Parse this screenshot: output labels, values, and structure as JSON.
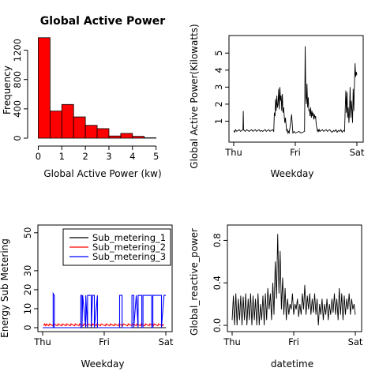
{
  "chart_data": [
    {
      "type": "bar",
      "title": "Global Active Power",
      "xlabel": "Global Active Power (kw)",
      "ylabel": "Frequency",
      "bin_edges": [
        0,
        0.5,
        1,
        1.5,
        2,
        2.5,
        3,
        3.5,
        4,
        4.5,
        5,
        5.5
      ],
      "values": [
        1370,
        370,
        460,
        290,
        175,
        130,
        30,
        65,
        25,
        5,
        0
      ],
      "bar_color": "#ff0000",
      "xticks": [
        "0",
        "1",
        "2",
        "3",
        "4",
        "5"
      ],
      "yticks": [
        "0",
        "400",
        "800",
        "1200"
      ],
      "xlim": [
        -0.25,
        5.75
      ],
      "ylim": [
        0,
        1400
      ]
    },
    {
      "type": "line",
      "title": "",
      "xlabel": "Weekday",
      "ylabel": "Global Active Power(Kilowatts)",
      "xticks": [
        "Thu",
        "Fri",
        "Sat"
      ],
      "yticks": [
        "1",
        "2",
        "3",
        "4",
        "5"
      ],
      "ylim": [
        0,
        5.8
      ],
      "x_days": [
        0,
        0.015,
        0.03,
        0.05,
        0.07,
        0.09,
        0.11,
        0.13,
        0.15,
        0.155,
        0.16,
        0.17,
        0.19,
        0.21,
        0.23,
        0.25,
        0.27,
        0.29,
        0.31,
        0.33,
        0.35,
        0.37,
        0.39,
        0.41,
        0.43,
        0.45,
        0.47,
        0.49,
        0.51,
        0.53,
        0.55,
        0.57,
        0.59,
        0.61,
        0.63,
        0.65,
        0.66,
        0.67,
        0.68,
        0.69,
        0.7,
        0.71,
        0.72,
        0.73,
        0.74,
        0.75,
        0.76,
        0.77,
        0.78,
        0.79,
        0.8,
        0.81,
        0.82,
        0.83,
        0.84,
        0.85,
        0.86,
        0.87,
        0.88,
        0.89,
        0.9,
        0.92,
        0.94,
        0.96,
        0.98,
        1.0,
        1.03,
        1.06,
        1.09,
        1.12,
        1.15,
        1.16,
        1.17,
        1.18,
        1.19,
        1.2,
        1.21,
        1.22,
        1.23,
        1.24,
        1.25,
        1.26,
        1.27,
        1.28,
        1.29,
        1.3,
        1.31,
        1.32,
        1.33,
        1.34,
        1.35,
        1.36,
        1.37,
        1.38,
        1.39,
        1.4,
        1.42,
        1.44,
        1.46,
        1.48,
        1.5,
        1.52,
        1.54,
        1.56,
        1.58,
        1.6,
        1.62,
        1.64,
        1.66,
        1.68,
        1.7,
        1.72,
        1.74,
        1.76,
        1.78,
        1.8,
        1.81,
        1.82,
        1.83,
        1.84,
        1.85,
        1.86,
        1.87,
        1.88,
        1.89,
        1.9,
        1.91,
        1.92,
        1.93,
        1.94,
        1.95,
        1.96,
        1.97,
        1.98,
        1.99,
        2.0
      ],
      "y_kw": [
        0.45,
        0.35,
        0.5,
        0.4,
        0.45,
        0.5,
        0.4,
        0.45,
        0.5,
        1.6,
        0.5,
        0.45,
        0.4,
        0.5,
        0.45,
        0.4,
        0.45,
        0.5,
        0.4,
        0.45,
        0.5,
        0.4,
        0.45,
        0.5,
        0.4,
        0.45,
        0.4,
        0.45,
        0.5,
        0.4,
        0.45,
        0.5,
        0.4,
        0.45,
        0.5,
        0.4,
        1.5,
        1.3,
        2.3,
        1.6,
        2.5,
        1.8,
        2.0,
        2.9,
        1.7,
        3.0,
        2.2,
        2.5,
        1.6,
        2.6,
        1.5,
        1.8,
        1.3,
        0.9,
        1.2,
        0.8,
        0.4,
        0.5,
        0.3,
        0.4,
        0.3,
        0.8,
        1.4,
        0.3,
        0.4,
        0.3,
        0.35,
        0.4,
        0.3,
        0.35,
        0.4,
        5.4,
        2.5,
        2.0,
        3.2,
        1.8,
        2.4,
        1.6,
        1.7,
        1.3,
        1.8,
        1.2,
        1.6,
        1.3,
        1.5,
        1.1,
        1.4,
        1.2,
        1.3,
        0.8,
        0.6,
        0.4,
        0.5,
        0.4,
        0.5,
        0.4,
        0.45,
        0.5,
        0.4,
        0.45,
        0.5,
        0.4,
        0.45,
        0.5,
        0.4,
        0.35,
        0.45,
        0.4,
        0.5,
        0.35,
        0.45,
        0.4,
        0.5,
        0.35,
        0.45,
        0.4,
        1.7,
        2.8,
        1.5,
        2.7,
        1.2,
        1.8,
        0.9,
        1.5,
        3.0,
        1.2,
        2.2,
        1.6,
        0.9,
        2.9,
        1.6,
        3.2,
        4.4,
        3.6,
        3.9,
        3.7
      ]
    },
    {
      "type": "line",
      "title": "",
      "xlabel": "Weekday",
      "ylabel": "Energy Sub Metering",
      "xticks": [
        "Thu",
        "Fri",
        "Sat"
      ],
      "yticks": [
        "0",
        "10",
        "20",
        "30",
        "50"
      ],
      "ylim": [
        0,
        52
      ],
      "legend_position": "top-right",
      "series": [
        {
          "name": "Sub_metering_1",
          "color": "#000000",
          "x_days": [
            0,
            2
          ],
          "values": [
            0,
            0
          ]
        },
        {
          "name": "Sub_metering_2",
          "color": "#ff0000",
          "x_days": [
            0.02,
            0.03,
            0.05,
            0.06,
            0.1,
            0.11,
            0.17,
            0.18,
            0.24,
            0.25,
            0.31,
            0.32,
            0.38,
            0.39,
            0.45,
            0.46,
            0.52,
            0.53,
            0.59,
            0.6,
            0.66,
            0.67,
            0.72,
            0.73,
            0.8,
            0.81,
            0.87,
            0.88,
            0.94,
            0.95,
            1.02,
            1.03,
            1.09,
            1.1,
            1.16,
            1.17,
            1.23,
            1.24,
            1.3,
            1.31,
            1.38,
            1.39,
            1.45,
            1.46,
            1.52,
            1.53,
            1.59,
            1.6,
            1.66,
            1.67,
            1.73,
            1.74,
            1.8,
            1.81,
            1.87,
            1.88,
            1.95,
            1.96
          ],
          "values": [
            1,
            2,
            1,
            2,
            1,
            2,
            1,
            2,
            1,
            2,
            1,
            2,
            1,
            2,
            1,
            2,
            1,
            2,
            1,
            2,
            1,
            2,
            1,
            2,
            1,
            2,
            1,
            2,
            1,
            2,
            1,
            2,
            1,
            2,
            1,
            2,
            1,
            2,
            1,
            2,
            1,
            2,
            1,
            2,
            1,
            2,
            1,
            2,
            1,
            2,
            1,
            2,
            1,
            2,
            1,
            2,
            1,
            2
          ]
        },
        {
          "name": "Sub_metering_3",
          "color": "#0000ff",
          "x_days": [
            0,
            0.17,
            0.17,
            0.19,
            0.19,
            0.62,
            0.62,
            0.64,
            0.64,
            0.65,
            0.65,
            0.7,
            0.7,
            0.73,
            0.73,
            0.79,
            0.79,
            0.81,
            0.81,
            0.84,
            0.84,
            0.89,
            0.89,
            1.25,
            1.25,
            1.29,
            1.29,
            1.45,
            1.45,
            1.48,
            1.48,
            1.52,
            1.52,
            1.55,
            1.55,
            1.61,
            1.61,
            1.63,
            1.63,
            1.77,
            1.77,
            1.79,
            1.79,
            1.93,
            1.93,
            1.97,
            1.97,
            2.0
          ],
          "values": [
            0,
            0,
            18,
            17,
            0,
            0,
            17,
            17,
            0,
            17,
            17,
            0,
            17,
            0,
            17,
            17,
            0,
            17,
            17,
            17,
            0,
            17,
            0,
            0,
            17,
            17,
            0,
            0,
            17,
            17,
            0,
            17,
            17,
            0,
            17,
            17,
            0,
            0,
            17,
            17,
            0,
            0,
            17,
            17,
            0,
            17,
            17,
            17
          ]
        }
      ]
    },
    {
      "type": "line",
      "title": "",
      "xlabel": "datetime",
      "ylabel": "Global_reactive_power",
      "xticks": [
        "Thu",
        "Fri",
        "Sat"
      ],
      "yticks": [
        "0.0",
        "0.4",
        "0.8"
      ],
      "ylim": [
        0,
        0.9
      ],
      "x_days": [
        0,
        0.02,
        0.04,
        0.06,
        0.08,
        0.1,
        0.12,
        0.14,
        0.16,
        0.18,
        0.2,
        0.22,
        0.24,
        0.26,
        0.28,
        0.3,
        0.32,
        0.34,
        0.36,
        0.38,
        0.4,
        0.42,
        0.44,
        0.46,
        0.48,
        0.5,
        0.52,
        0.54,
        0.56,
        0.58,
        0.6,
        0.62,
        0.64,
        0.66,
        0.68,
        0.7,
        0.72,
        0.74,
        0.76,
        0.78,
        0.8,
        0.82,
        0.84,
        0.86,
        0.88,
        0.9,
        0.92,
        0.94,
        0.96,
        0.98,
        1.0,
        1.02,
        1.04,
        1.06,
        1.08,
        1.1,
        1.12,
        1.14,
        1.16,
        1.18,
        1.2,
        1.22,
        1.24,
        1.26,
        1.28,
        1.3,
        1.32,
        1.34,
        1.36,
        1.38,
        1.4,
        1.42,
        1.44,
        1.46,
        1.48,
        1.5,
        1.52,
        1.54,
        1.56,
        1.58,
        1.6,
        1.62,
        1.64,
        1.66,
        1.68,
        1.7,
        1.72,
        1.74,
        1.76,
        1.78,
        1.8,
        1.82,
        1.84,
        1.86,
        1.88,
        1.9,
        1.92,
        1.94,
        1.96,
        1.98,
        2.0
      ],
      "values": [
        0.05,
        0.28,
        0.0,
        0.3,
        0.0,
        0.25,
        0.05,
        0.28,
        0.0,
        0.27,
        0.05,
        0.3,
        0.0,
        0.25,
        0.05,
        0.3,
        0.0,
        0.28,
        0.05,
        0.25,
        0.0,
        0.3,
        0.0,
        0.2,
        0.05,
        0.28,
        0.0,
        0.3,
        0.05,
        0.35,
        0.15,
        0.3,
        0.05,
        0.4,
        0.1,
        0.6,
        0.25,
        0.86,
        0.3,
        0.7,
        0.15,
        0.45,
        0.1,
        0.35,
        0.05,
        0.25,
        0.1,
        0.2,
        0.15,
        0.3,
        0.1,
        0.2,
        0.15,
        0.25,
        0.08,
        0.2,
        0.1,
        0.3,
        0.15,
        0.38,
        0.1,
        0.28,
        0.15,
        0.3,
        0.1,
        0.25,
        0.12,
        0.3,
        0.1,
        0.25,
        0.0,
        0.2,
        0.1,
        0.25,
        0.05,
        0.2,
        0.1,
        0.25,
        0.05,
        0.2,
        0.1,
        0.25,
        0.12,
        0.3,
        0.1,
        0.25,
        0.05,
        0.35,
        0.1,
        0.3,
        0.05,
        0.28,
        0.1,
        0.25,
        0.15,
        0.3,
        0.1,
        0.25,
        0.15,
        0.2,
        0.1
      ]
    }
  ]
}
